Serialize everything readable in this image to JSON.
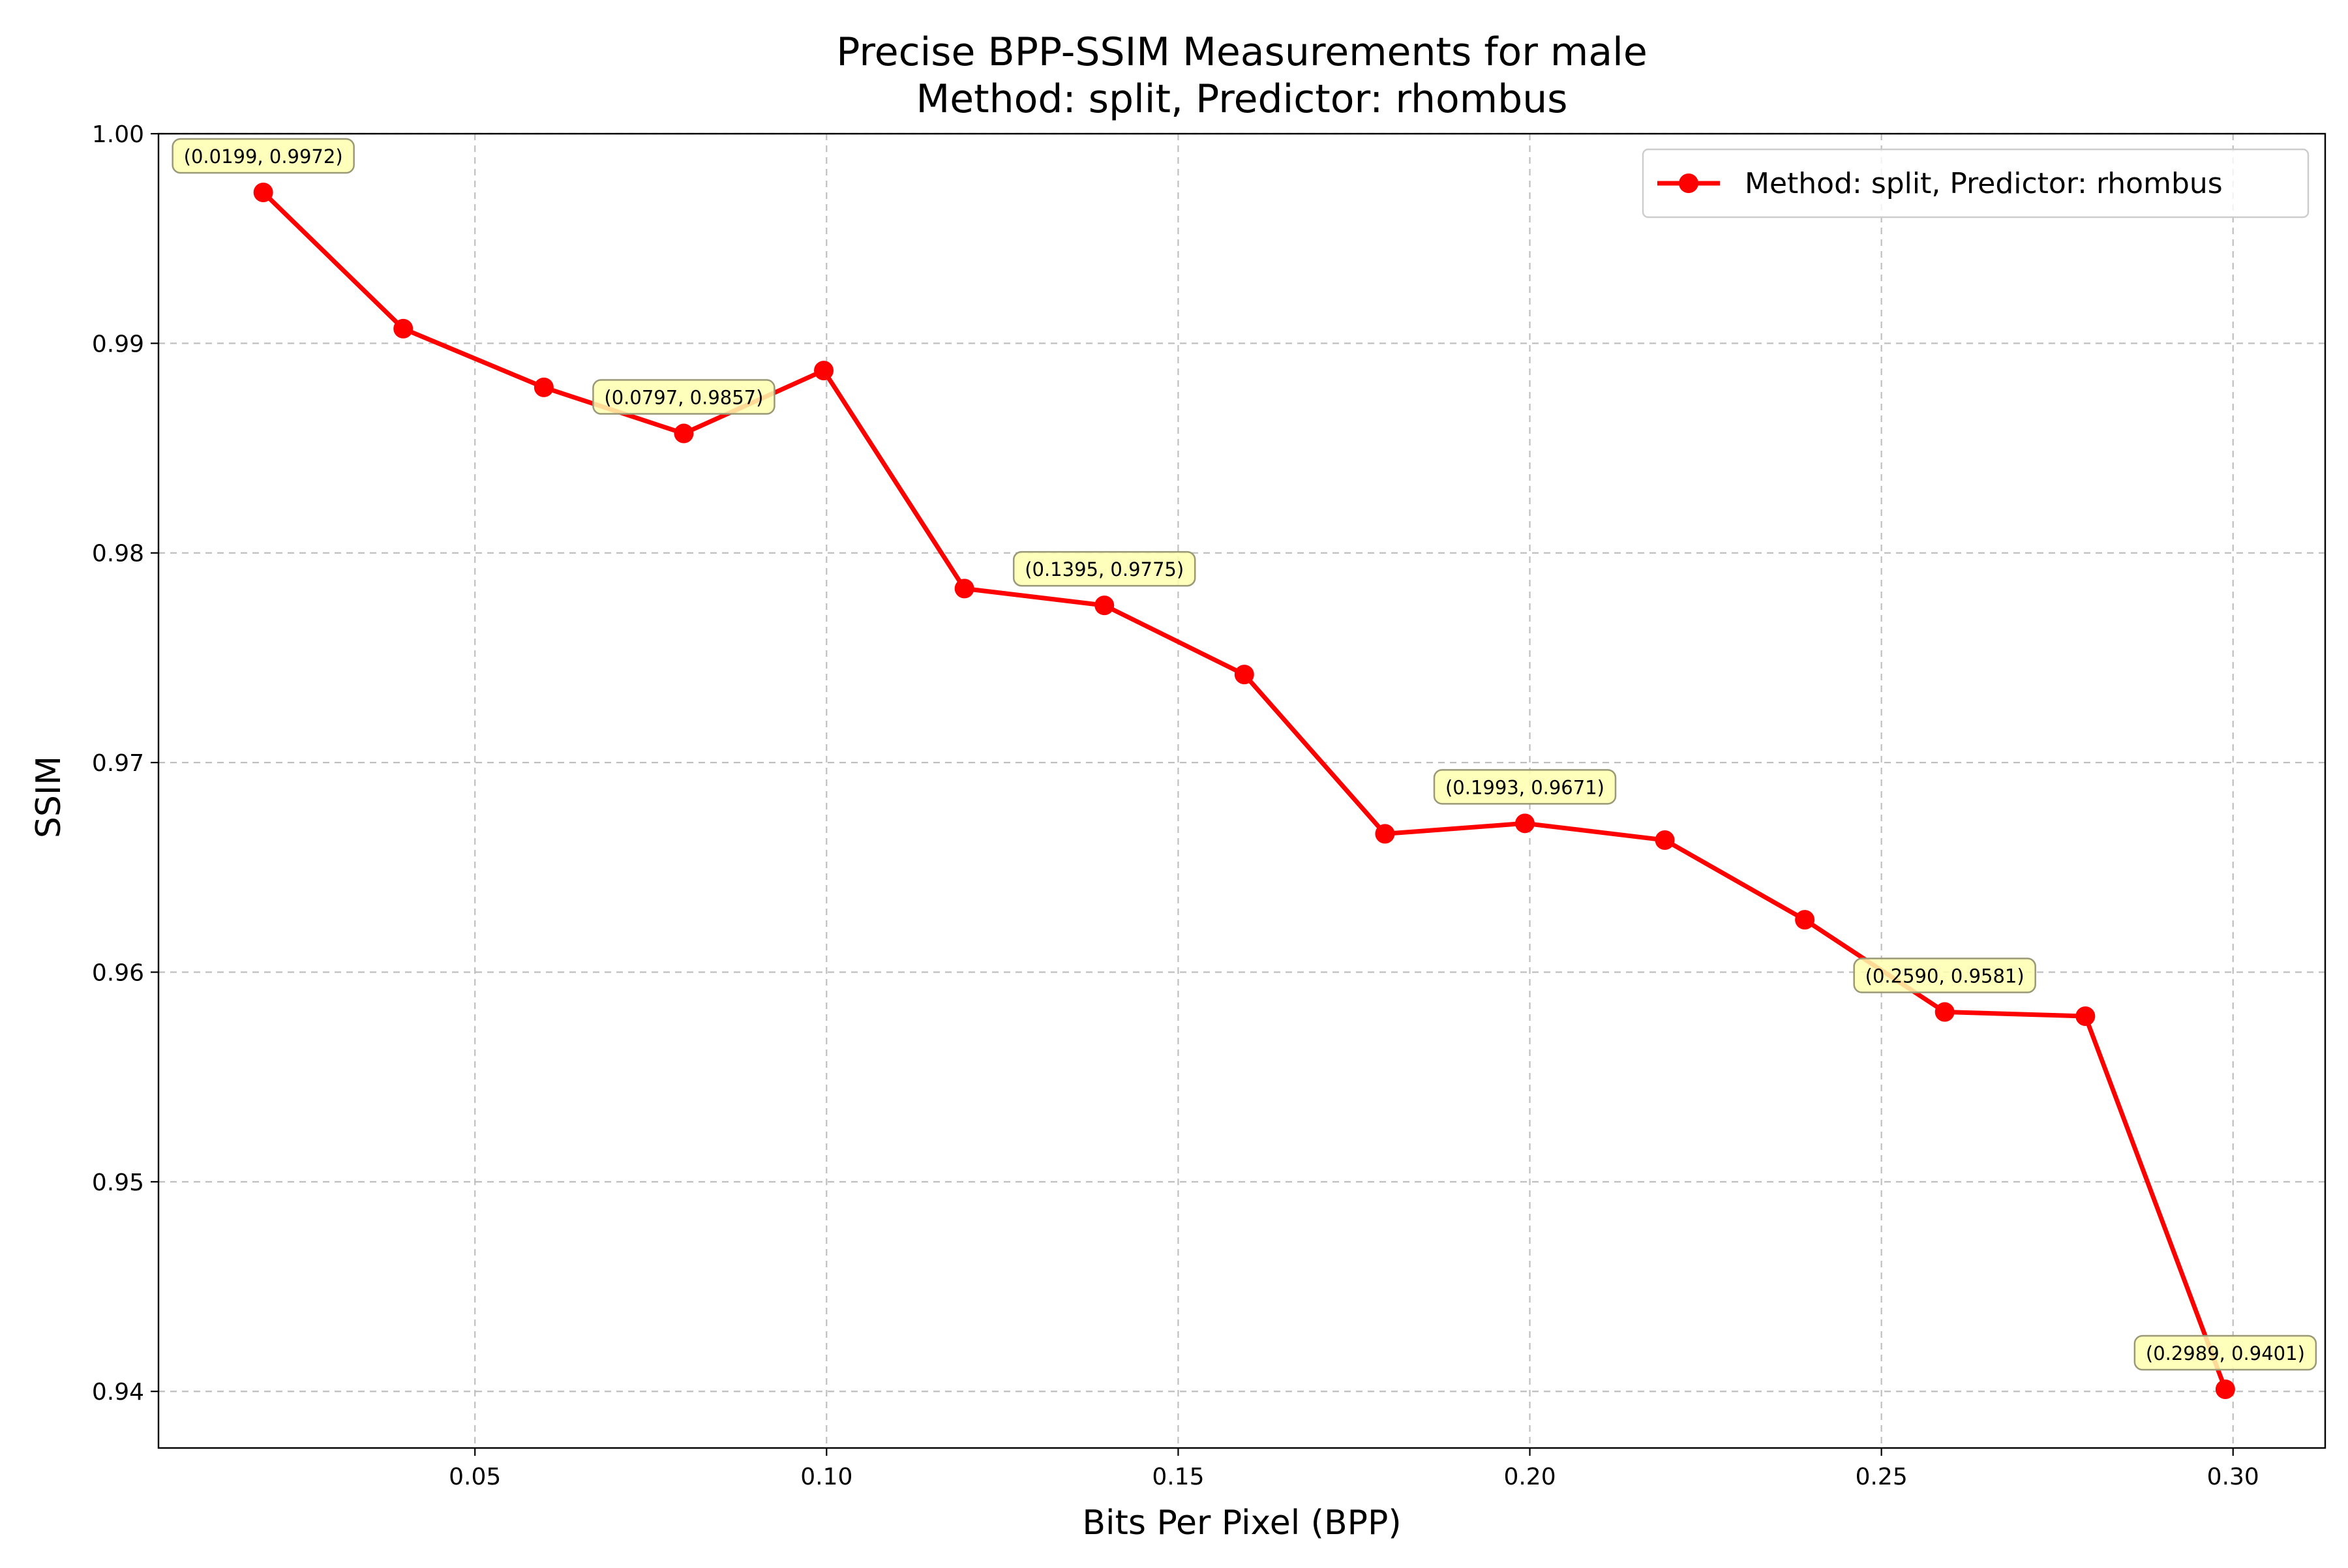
{
  "chart_data": {
    "type": "line",
    "title": "Precise BPP-SSIM Measurements for male",
    "subtitle": "Method: split, Predictor: rhombus",
    "xlabel": "Bits Per Pixel (BPP)",
    "ylabel": "SSIM",
    "xlim": [
      0.005,
      0.3131
    ],
    "ylim": [
      0.9373,
      1.0
    ],
    "x_ticks": [
      0.05,
      0.1,
      0.15,
      0.2,
      0.25,
      0.3
    ],
    "x_tick_labels": [
      "0.05",
      "0.10",
      "0.15",
      "0.20",
      "0.25",
      "0.30"
    ],
    "y_ticks": [
      0.94,
      0.95,
      0.96,
      0.97,
      0.98,
      0.99,
      1.0
    ],
    "y_tick_labels": [
      "0.94",
      "0.95",
      "0.96",
      "0.97",
      "0.98",
      "0.99",
      "1.00"
    ],
    "grid": true,
    "legend_position": "top-right",
    "series": [
      {
        "name": "Method: split, Predictor: rhombus",
        "color": "#ff0000",
        "marker": "circle",
        "x": [
          0.0199,
          0.0398,
          0.0598,
          0.0797,
          0.0996,
          0.1196,
          0.1395,
          0.1594,
          0.1794,
          0.1993,
          0.2192,
          0.2391,
          0.259,
          0.279,
          0.2989
        ],
        "y": [
          0.9972,
          0.9907,
          0.9879,
          0.9857,
          0.9887,
          0.9783,
          0.9775,
          0.9742,
          0.9666,
          0.9671,
          0.9663,
          0.9625,
          0.9581,
          0.9579,
          0.9401
        ]
      }
    ],
    "annotations": [
      {
        "x": 0.0199,
        "y": 0.9972,
        "text": "(0.0199, 0.9972)"
      },
      {
        "x": 0.0797,
        "y": 0.9857,
        "text": "(0.0797, 0.9857)"
      },
      {
        "x": 0.1395,
        "y": 0.9775,
        "text": "(0.1395, 0.9775)"
      },
      {
        "x": 0.1993,
        "y": 0.9671,
        "text": "(0.1993, 0.9671)"
      },
      {
        "x": 0.259,
        "y": 0.9581,
        "text": "(0.2590, 0.9581)"
      },
      {
        "x": 0.2989,
        "y": 0.9401,
        "text": "(0.2989, 0.9401)"
      }
    ],
    "annotation_box_color": "#ffffb0"
  }
}
